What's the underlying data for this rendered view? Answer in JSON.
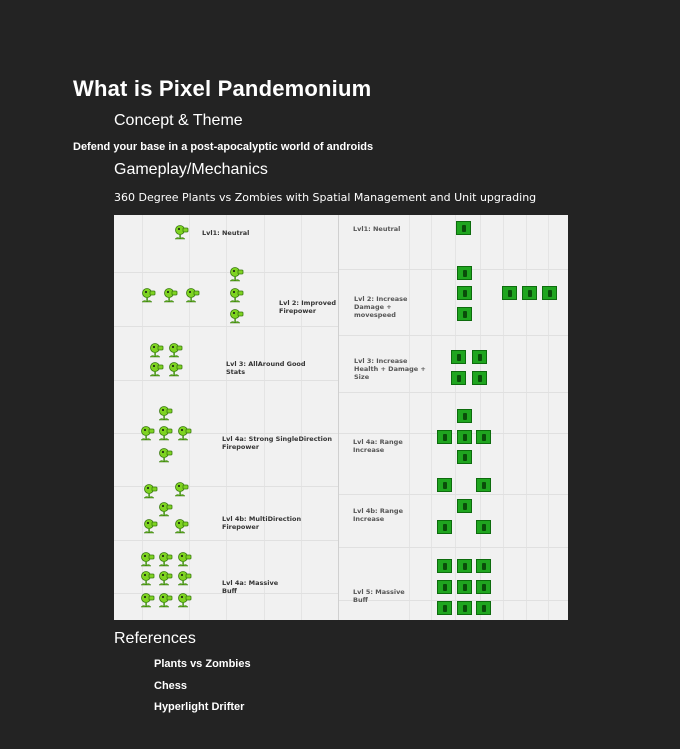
{
  "title": "What is Pixel Pandemonium",
  "sections": {
    "concept_heading": "Concept & Theme",
    "concept_text": "Defend your base in a post-apocalyptic world of androids",
    "gameplay_heading": "Gameplay/Mechanics",
    "gameplay_text": "360 Degree Plants vs Zombies with Spatial Management and Unit upgrading",
    "references_heading": "References"
  },
  "references": [
    "Plants vs Zombies",
    "Chess",
    "Hyperlight Drifter"
  ],
  "figure": {
    "left_labels": [
      "Lvl1: Neutral",
      "Lvl 2: Improved Firepower",
      "Lvl 3: AllAround Good Stats",
      "Lvl 4a: Strong SingleDirection Firepower",
      "Lvl 4b: MultiDirection Firepower",
      "Lvl 4a: Massive Buff"
    ],
    "right_labels": [
      "Lvl1: Neutral",
      "Lvl 2: Increase Damage + movespeed",
      "Lvl 3: Increase Health + Damage + Size",
      "Lvl 4a: Range Increase",
      "Lvl 4b: Range Increase",
      "Lvl 5: Massive Buff"
    ]
  },
  "colors": {
    "background": "#232323",
    "text": "#ffffff",
    "figure_bg": "#f1f1f1",
    "unit_green": "#1fa51f",
    "plant_green": "#7ed321"
  },
  "icons": {
    "plant": "peashooter-icon",
    "unit": "green-unit-icon"
  }
}
